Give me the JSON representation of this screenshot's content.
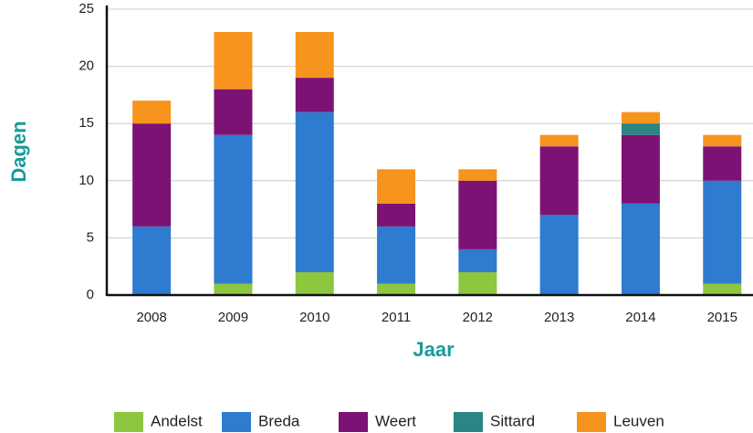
{
  "chart_data": {
    "type": "stacked_bar",
    "categories": [
      "2008",
      "2009",
      "2010",
      "2011",
      "2012",
      "2013",
      "2014",
      "2015"
    ],
    "series": [
      {
        "name": "Andelst",
        "color": "#8dc63f",
        "values": [
          0,
          1,
          2,
          1,
          2,
          0,
          0,
          1
        ]
      },
      {
        "name": "Breda",
        "color": "#2e7bcf",
        "values": [
          6,
          13,
          14,
          5,
          2,
          7,
          8,
          9
        ]
      },
      {
        "name": "Weert",
        "color": "#7d1275",
        "values": [
          9,
          4,
          3,
          2,
          6,
          6,
          6,
          3
        ]
      },
      {
        "name": "Sittard",
        "color": "#2a8585",
        "values": [
          0,
          0,
          0,
          0,
          0,
          0,
          1,
          0
        ]
      },
      {
        "name": "Leuven",
        "color": "#f7941d",
        "values": [
          2,
          5,
          4,
          3,
          1,
          1,
          1,
          1
        ]
      }
    ],
    "ylim": [
      0,
      25
    ],
    "yticks": [
      0,
      5,
      10,
      15,
      20,
      25
    ],
    "grid": true,
    "xlabel": "Jaar",
    "ylabel": "Dagen",
    "legend": "bottom"
  }
}
